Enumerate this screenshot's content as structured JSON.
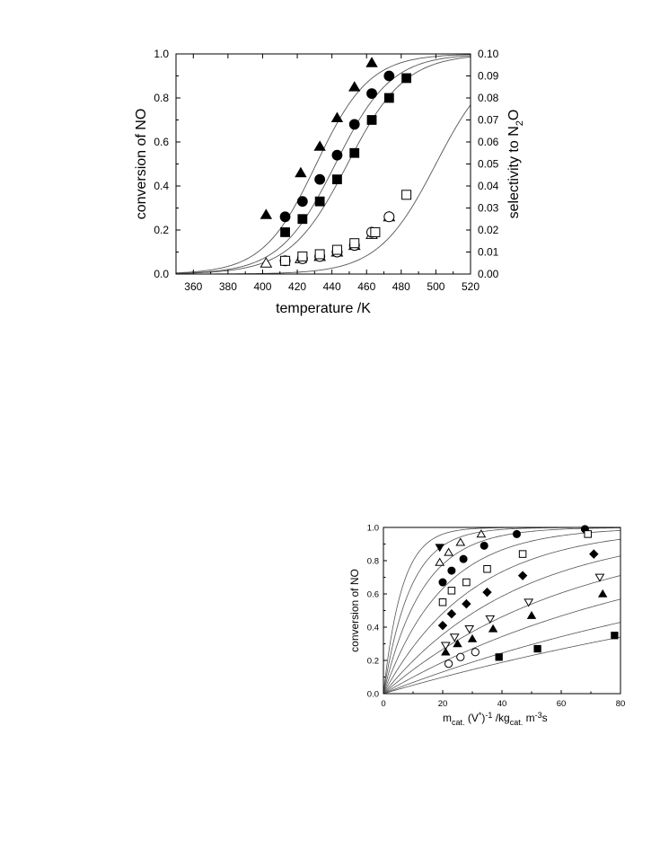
{
  "chart_data": [
    {
      "type": "scatter",
      "xlabel": "temperature /K",
      "ylabel": "conversion of NO",
      "y2label_parts": [
        "selectivity to N",
        "2",
        "O"
      ],
      "xlim": [
        350,
        520
      ],
      "ylim": [
        0,
        1.0
      ],
      "y2lim": [
        0,
        0.1
      ],
      "xticks": [
        "360",
        "380",
        "400",
        "420",
        "440",
        "460",
        "480",
        "500",
        "520"
      ],
      "yticks": [
        "0.0",
        "0.2",
        "0.4",
        "0.6",
        "0.8",
        "1.0"
      ],
      "y2ticks": [
        "0.00",
        "0.01",
        "0.02",
        "0.03",
        "0.04",
        "0.05",
        "0.06",
        "0.07",
        "0.08",
        "0.09",
        "0.10"
      ],
      "series": [
        {
          "marker": "triangle-filled",
          "axis": "left",
          "x": [
            402,
            422,
            433,
            443,
            453,
            463
          ],
          "y": [
            0.27,
            0.46,
            0.58,
            0.71,
            0.85,
            0.96
          ]
        },
        {
          "marker": "circle-filled",
          "axis": "left",
          "x": [
            413,
            423,
            433,
            443,
            453,
            463,
            473
          ],
          "y": [
            0.26,
            0.33,
            0.43,
            0.54,
            0.68,
            0.82,
            0.9
          ]
        },
        {
          "marker": "square-filled",
          "axis": "left",
          "x": [
            413,
            423,
            433,
            443,
            453,
            463,
            473,
            483
          ],
          "y": [
            0.19,
            0.25,
            0.33,
            0.43,
            0.55,
            0.7,
            0.8,
            0.89
          ]
        },
        {
          "marker": "triangle-open",
          "axis": "right",
          "x": [
            402,
            422,
            433,
            443,
            453,
            463,
            473
          ],
          "y": [
            0.005,
            0.007,
            0.008,
            0.01,
            0.013,
            0.018,
            0.026
          ]
        },
        {
          "marker": "circle-open",
          "axis": "right",
          "x": [
            413,
            423,
            433,
            443,
            453,
            463,
            473
          ],
          "y": [
            0.006,
            0.007,
            0.008,
            0.01,
            0.013,
            0.019,
            0.026
          ]
        },
        {
          "marker": "square-open",
          "axis": "right",
          "x": [
            413,
            423,
            433,
            443,
            453,
            465,
            483
          ],
          "y": [
            0.006,
            0.008,
            0.009,
            0.011,
            0.014,
            0.019,
            0.036
          ]
        }
      ],
      "fit_curves": [
        {
          "axis": "left",
          "x0": 431,
          "k": 0.065
        },
        {
          "axis": "left",
          "x0": 442,
          "k": 0.062
        },
        {
          "axis": "left",
          "x0": 449,
          "k": 0.06
        },
        {
          "axis": "right",
          "ymax": 0.1,
          "x0": 500,
          "k": 0.06
        }
      ]
    },
    {
      "type": "scatter",
      "xlabel_parts": [
        "m",
        "cat.",
        " (V",
        "*",
        ")",
        "-1",
        " /kg",
        "cat.",
        " m",
        "-3",
        "s"
      ],
      "ylabel": "conversion of NO",
      "xlim": [
        0,
        80
      ],
      "ylim": [
        0,
        1.0
      ],
      "xticks": [
        "0",
        "20",
        "40",
        "60",
        "80"
      ],
      "yticks": [
        "0.0",
        "0.2",
        "0.4",
        "0.6",
        "0.8",
        "1.0"
      ],
      "series": [
        {
          "marker": "triangle-down-filled",
          "x": [
            19
          ],
          "y": [
            0.88
          ]
        },
        {
          "marker": "triangle-open",
          "x": [
            19,
            22,
            26,
            33
          ],
          "y": [
            0.79,
            0.85,
            0.91,
            0.96
          ]
        },
        {
          "marker": "circle-filled",
          "x": [
            20,
            23,
            27,
            34,
            45,
            68
          ],
          "y": [
            0.67,
            0.74,
            0.81,
            0.89,
            0.96,
            0.99
          ]
        },
        {
          "marker": "square-open",
          "x": [
            20,
            23,
            28,
            35,
            47,
            69
          ],
          "y": [
            0.55,
            0.62,
            0.67,
            0.75,
            0.84,
            0.96
          ]
        },
        {
          "marker": "diamond-filled",
          "x": [
            20,
            23,
            28,
            35,
            47,
            71
          ],
          "y": [
            0.41,
            0.48,
            0.54,
            0.61,
            0.71,
            0.84
          ]
        },
        {
          "marker": "triangle-down-open",
          "x": [
            21,
            24,
            29,
            36,
            49,
            73
          ],
          "y": [
            0.29,
            0.34,
            0.39,
            0.45,
            0.55,
            0.7
          ]
        },
        {
          "marker": "triangle-filled",
          "x": [
            21,
            25,
            30,
            37,
            50,
            74
          ],
          "y": [
            0.25,
            0.3,
            0.33,
            0.39,
            0.47,
            0.6
          ]
        },
        {
          "marker": "circle-open",
          "x": [
            22,
            26,
            31
          ],
          "y": [
            0.18,
            0.22,
            0.25
          ]
        },
        {
          "marker": "square-filled",
          "x": [
            39,
            52,
            78
          ],
          "y": [
            0.22,
            0.27,
            0.35
          ]
        }
      ],
      "fit_curves_k": [
        0.16,
        0.11,
        0.075,
        0.05,
        0.033,
        0.022,
        0.0155,
        0.0105,
        0.007,
        0.0052
      ]
    }
  ]
}
